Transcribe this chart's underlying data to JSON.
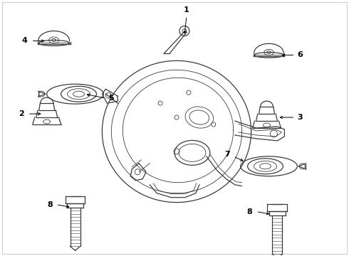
{
  "background_color": "#ffffff",
  "line_color": "#3a3a3a",
  "label_color": "#000000",
  "fig_width": 4.9,
  "fig_height": 3.6,
  "dpi": 100,
  "border_color": "#cccccc"
}
